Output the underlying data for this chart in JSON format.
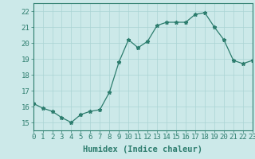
{
  "x": [
    0,
    1,
    2,
    3,
    4,
    5,
    6,
    7,
    8,
    9,
    10,
    11,
    12,
    13,
    14,
    15,
    16,
    17,
    18,
    19,
    20,
    21,
    22,
    23
  ],
  "y": [
    16.2,
    15.9,
    15.7,
    15.3,
    15.0,
    15.5,
    15.7,
    15.8,
    16.9,
    18.8,
    20.2,
    19.7,
    20.1,
    21.1,
    21.3,
    21.3,
    21.3,
    21.8,
    21.9,
    21.0,
    20.2,
    18.9,
    18.7,
    18.9
  ],
  "xlim": [
    0,
    23
  ],
  "ylim": [
    14.5,
    22.5
  ],
  "yticks": [
    15,
    16,
    17,
    18,
    19,
    20,
    21,
    22
  ],
  "xticks": [
    0,
    1,
    2,
    3,
    4,
    5,
    6,
    7,
    8,
    9,
    10,
    11,
    12,
    13,
    14,
    15,
    16,
    17,
    18,
    19,
    20,
    21,
    22,
    23
  ],
  "xlabel": "Humidex (Indice chaleur)",
  "line_color": "#2d7d6e",
  "marker": "*",
  "bg_color": "#cce9e9",
  "grid_color": "#aad4d4",
  "axis_color": "#2d7d6e",
  "tick_color": "#2d7d6e",
  "label_color": "#2d7d6e",
  "xlabel_fontsize": 7.5,
  "tick_fontsize": 6.5
}
